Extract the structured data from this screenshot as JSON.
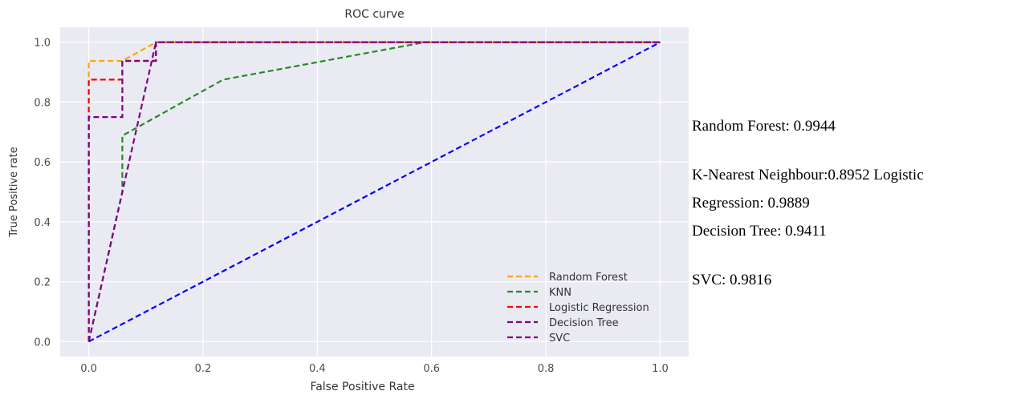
{
  "chart_data": {
    "type": "line",
    "title": "ROC curve",
    "xlabel": "False Positive Rate",
    "ylabel": "True Positive rate",
    "xlim": [
      -0.05,
      1.05
    ],
    "ylim": [
      -0.05,
      1.05
    ],
    "xticks": [
      "0.0",
      "0.2",
      "0.4",
      "0.6",
      "0.8",
      "1.0"
    ],
    "yticks": [
      "0.0",
      "0.2",
      "0.4",
      "0.6",
      "0.8",
      "1.0"
    ],
    "grid": true,
    "legend_position": "lower right",
    "series": [
      {
        "name": "Random Forest",
        "color": "#FFA500",
        "x": [
          0.0,
          0.0,
          0.0588,
          0.0588,
          0.1176,
          0.1176,
          1.0
        ],
        "y": [
          0.0,
          0.9375,
          0.9375,
          0.9375,
          1.0,
          1.0,
          1.0
        ]
      },
      {
        "name": "KNN",
        "color": "#228B22",
        "x": [
          0.0,
          0.0588,
          0.0588,
          0.2353,
          0.5882,
          1.0
        ],
        "y": [
          0.0,
          0.5,
          0.6875,
          0.875,
          1.0,
          1.0
        ]
      },
      {
        "name": "Logistic Regression",
        "color": "#FF0000",
        "x": [
          0.0,
          0.0,
          0.0588,
          0.0588,
          0.1176,
          0.1176,
          1.0
        ],
        "y": [
          0.0,
          0.875,
          0.875,
          0.9375,
          0.9375,
          1.0,
          1.0
        ]
      },
      {
        "name": "Decision Tree",
        "color": "#800080",
        "x": [
          0.0,
          0.1176,
          1.0
        ],
        "y": [
          0.0,
          1.0,
          1.0
        ]
      },
      {
        "name": "SVC",
        "color": "#800080",
        "x": [
          0.0,
          0.0,
          0.0588,
          0.0588,
          0.1176,
          0.1176,
          1.0
        ],
        "y": [
          0.0,
          0.75,
          0.75,
          0.9375,
          0.9375,
          1.0,
          1.0
        ]
      },
      {
        "name": "",
        "color": "#0000FF",
        "x": [
          0.0,
          1.0
        ],
        "y": [
          0.0,
          1.0
        ]
      }
    ]
  },
  "scores": {
    "random_forest": "Random Forest: 0.9944",
    "knn_line": "K-Nearest Neighbour:0.8952 Logistic",
    "logreg_line": "Regression: 0.9889",
    "dtree_line": "Decision Tree: 0.9411",
    "svc_line": "SVC: 0.9816"
  }
}
